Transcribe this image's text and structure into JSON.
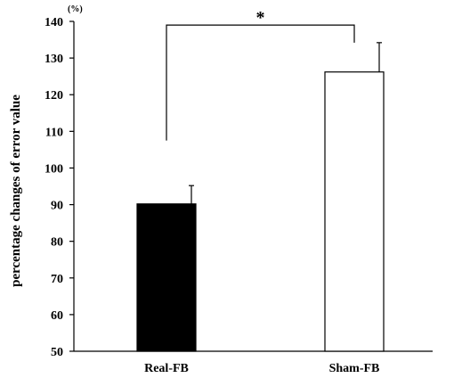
{
  "chart_data": {
    "type": "bar",
    "categories": [
      "Real-FB",
      "Sham-FB"
    ],
    "values": [
      90.2,
      126.2
    ],
    "errors": [
      5.0,
      8.0
    ],
    "bar_colors": [
      "#000000",
      "#ffffff"
    ],
    "bar_edge_color": "#000000",
    "ylabel": "percentage changes of error value",
    "unit": "(%)",
    "ylim": [
      50,
      140
    ],
    "yticks": [
      50,
      60,
      70,
      80,
      90,
      100,
      110,
      120,
      130,
      140
    ],
    "significance": {
      "marker": "*",
      "between": [
        0,
        1
      ],
      "level": 139,
      "left_drop_to": 107.5,
      "right_drop_to": 134.2
    },
    "grid": false,
    "legend": "none"
  }
}
